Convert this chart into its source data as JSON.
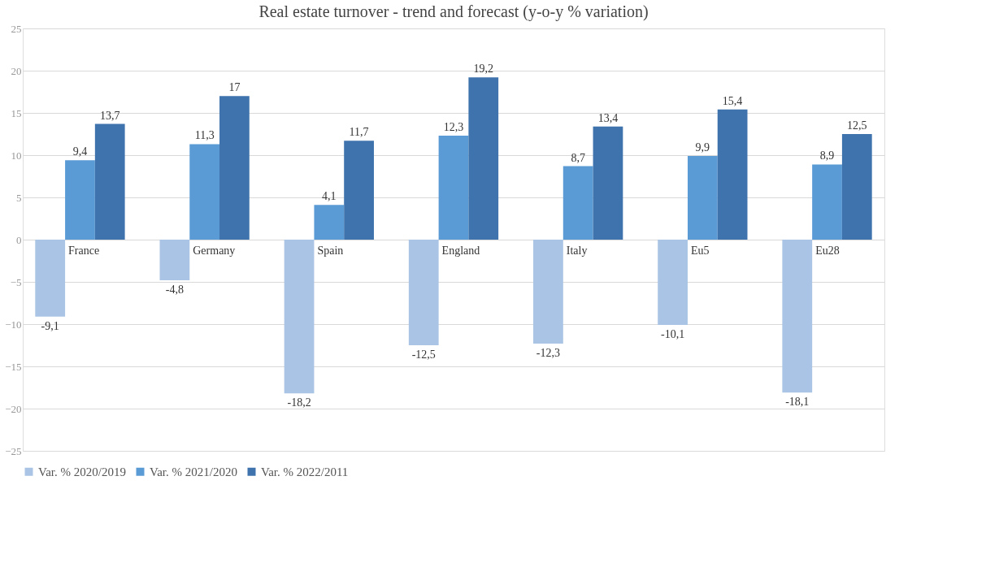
{
  "chart_data": {
    "type": "bar",
    "title": "Real estate turnover - trend and forecast (y-o-y % variation)",
    "categories": [
      "France",
      "Germany",
      "Spain",
      "England",
      "Italy",
      "Eu5",
      "Eu28"
    ],
    "series": [
      {
        "name": "Var. % 2020/2019",
        "color": "#a9c4e4",
        "values": [
          -9.1,
          -4.8,
          -18.2,
          -12.5,
          -12.3,
          -10.1,
          -18.1
        ],
        "value_labels": [
          "-9,1",
          "-4,8",
          "-18,2",
          "-12,5",
          "-12,3",
          "-10,1",
          "-18,1"
        ]
      },
      {
        "name": "Var. % 2021/2020",
        "color": "#5b9bd5",
        "values": [
          9.4,
          11.3,
          4.1,
          12.3,
          8.7,
          9.9,
          8.9
        ],
        "value_labels": [
          "9,4",
          "11,3",
          "4,1",
          "12,3",
          "8,7",
          "9,9",
          "8,9"
        ]
      },
      {
        "name": "Var. % 2022/2011",
        "color": "#3f73ad",
        "values": [
          13.7,
          17,
          11.7,
          19.2,
          13.4,
          15.4,
          12.5
        ],
        "value_labels": [
          "13,7",
          "17",
          "11,7",
          "19,2",
          "13,4",
          "15,4",
          "12,5"
        ]
      }
    ],
    "ylim": [
      -25,
      25
    ],
    "yticks": [
      -25,
      -20,
      -15,
      -10,
      -5,
      0,
      5,
      10,
      15,
      20,
      25
    ],
    "grid": "y",
    "legend": "bottom"
  }
}
